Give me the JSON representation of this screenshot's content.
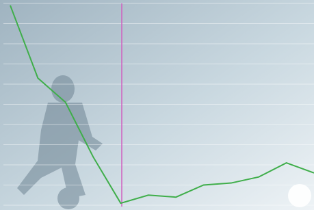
{
  "chart_data": {
    "type": "line",
    "categories": [
      null,
      null,
      null,
      null,
      null,
      null,
      null,
      null,
      null,
      null,
      null,
      null
    ],
    "series": [
      {
        "color": "#3fae4a",
        "values": [
          99,
          63,
          51,
          24,
          1,
          5,
          4,
          10,
          11,
          14,
          21,
          16
        ]
      }
    ],
    "ylim": [
      0,
      100
    ],
    "yticks": [
      0,
      10,
      20,
      30,
      40,
      50,
      60,
      70,
      80,
      90,
      100
    ],
    "grid": true
  }
}
